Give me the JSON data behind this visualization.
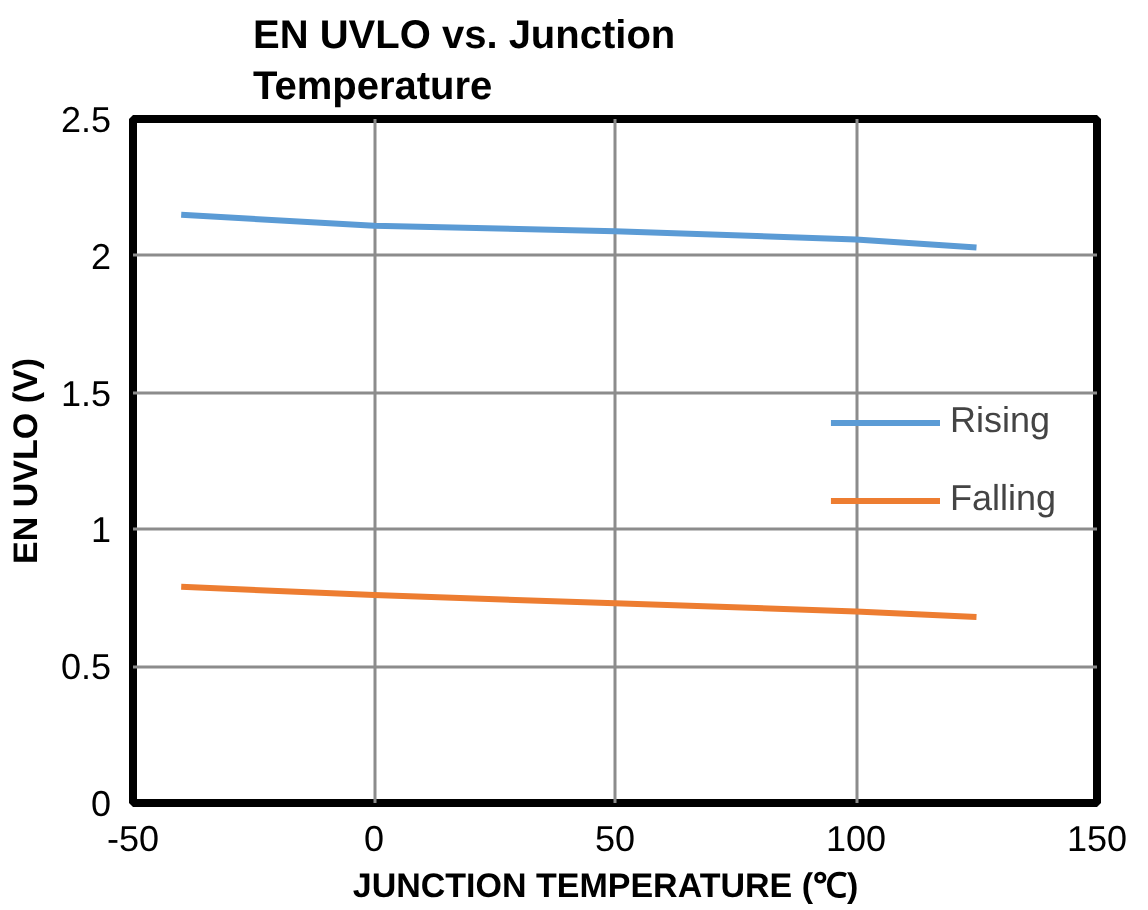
{
  "chart_data": {
    "type": "line",
    "title": "EN UVLO vs. Junction Temperature",
    "xlabel": "JUNCTION  TEMPERATURE  (℃)",
    "ylabel": "EN UVLO (V)",
    "x": [
      -40,
      0,
      50,
      100,
      125
    ],
    "series": [
      {
        "name": "Rising",
        "color": "#5b9bd5",
        "values": [
          2.15,
          2.11,
          2.09,
          2.06,
          2.03
        ]
      },
      {
        "name": "Falling",
        "color": "#ed7d31",
        "values": [
          0.79,
          0.76,
          0.73,
          0.7,
          0.68
        ]
      }
    ],
    "xlim": [
      -50,
      150
    ],
    "xticks": [
      -50,
      0,
      50,
      100,
      150
    ],
    "ylim": [
      0,
      2.5
    ],
    "yticks": [
      0,
      0.5,
      1,
      1.5,
      2,
      2.5
    ],
    "grid": true,
    "legend": "right",
    "marker": "none",
    "line_style": "solid"
  }
}
